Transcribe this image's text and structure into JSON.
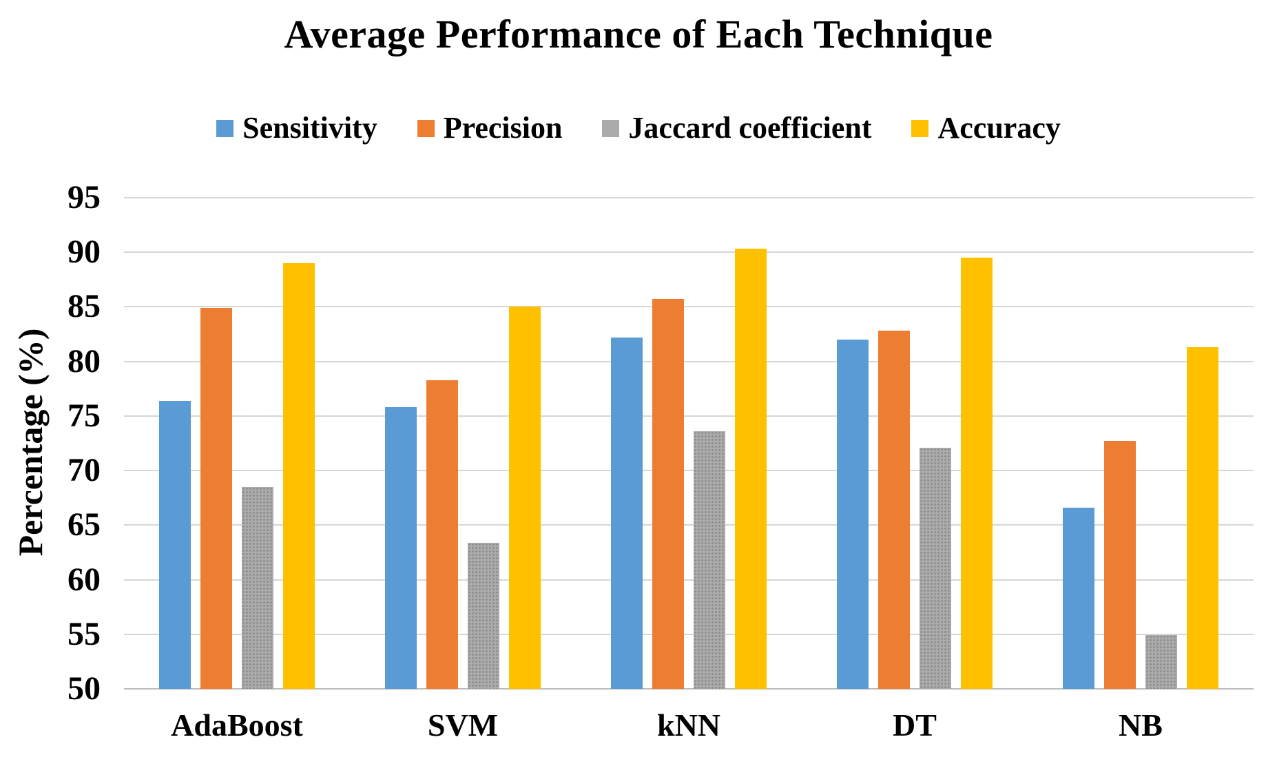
{
  "figure": {
    "background": "#ffffff",
    "text_color": "#000000",
    "gridline_color": "#d6d6d6",
    "axis_line_color": "#bdbdbd"
  },
  "chart_data": {
    "type": "bar",
    "title": "Average Performance of Each Technique",
    "ylabel": "Percentage (%)",
    "xlabel": "",
    "categories": [
      "AdaBoost",
      "SVM",
      "kNN",
      "DT",
      "NB"
    ],
    "series": [
      {
        "name": "Sensitivity",
        "color": "#5B9BD5",
        "fill": "solid",
        "values": [
          76.4,
          75.8,
          82.2,
          82.0,
          66.6
        ]
      },
      {
        "name": "Precision",
        "color": "#ED7D31",
        "fill": "solid",
        "values": [
          84.9,
          78.3,
          85.7,
          82.8,
          72.7
        ]
      },
      {
        "name": "Jaccard coefficient",
        "color": "#A5A5A5",
        "fill": "dotted-pattern",
        "values": [
          68.5,
          63.4,
          73.6,
          72.1,
          54.9
        ]
      },
      {
        "name": "Accuracy",
        "color": "#FFC000",
        "fill": "solid",
        "values": [
          89.0,
          85.0,
          90.3,
          89.5,
          81.3
        ]
      }
    ],
    "ylim": [
      50,
      95
    ],
    "yticks": [
      95,
      90,
      85,
      80,
      75,
      70,
      65,
      60,
      55,
      50
    ],
    "grid": true,
    "legend_position": "top"
  }
}
